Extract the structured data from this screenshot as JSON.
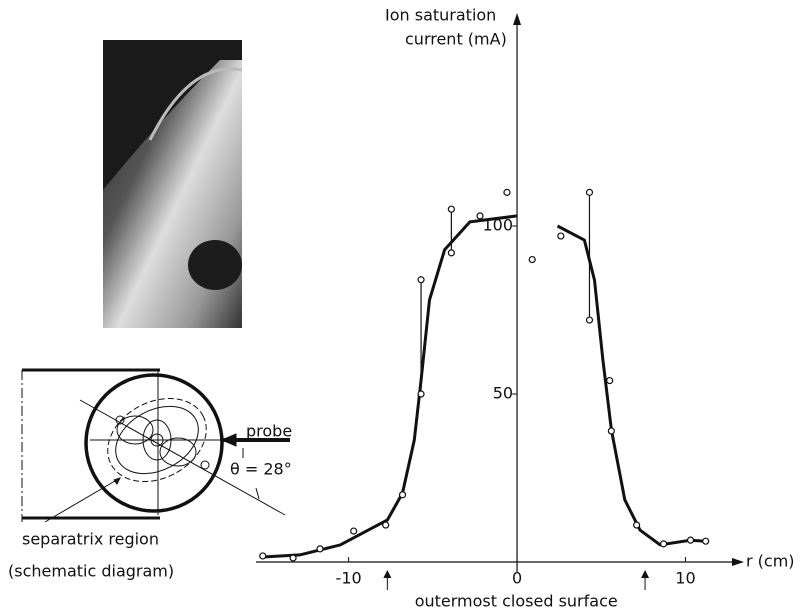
{
  "chart_data": {
    "type": "scatter",
    "ylabel": [
      "Ion saturation",
      "current (mA)"
    ],
    "xlabel": "r (cm)",
    "xlim": [
      -15.5,
      13.0
    ],
    "xticks": [
      -10,
      0,
      10
    ],
    "ylim": [
      0,
      161
    ],
    "yticks": [
      50,
      100
    ],
    "color": "#111111",
    "points": {
      "x": [
        -15.1,
        -13.3,
        -11.7,
        -9.7,
        -7.8,
        -6.8,
        -5.7,
        -5.7,
        -3.9,
        -3.9,
        -2.2,
        -0.6,
        0.9,
        2.6,
        4.3,
        4.3,
        5.5,
        5.6,
        7.1,
        8.7,
        10.3,
        11.2
      ],
      "y": [
        1.8,
        1.2,
        3.9,
        9.2,
        11,
        20,
        50,
        84,
        105,
        92,
        103,
        110,
        90,
        97,
        110,
        72,
        54,
        39,
        11,
        5.4,
        6.5,
        6.2
      ]
    },
    "error_bars": {
      "x": [
        -5.7,
        -3.9,
        4.3
      ],
      "low": [
        50,
        92,
        72
      ],
      "high": [
        84,
        105,
        110
      ]
    },
    "curve": {
      "x": [
        -15.1,
        -12.9,
        -10.5,
        -7.7,
        -6.8,
        -6.1,
        -5.7,
        -5.2,
        -4.3,
        -2.8,
        0,
        null,
        2.4,
        4.0,
        4.6,
        5.1,
        5.6,
        6.4,
        7.3,
        8.5,
        10.3,
        11.2
      ],
      "y": [
        1.5,
        2.1,
        5.1,
        12.5,
        20.5,
        36.3,
        54.2,
        78,
        92.9,
        101.2,
        103,
        null,
        100,
        95.8,
        83.9,
        60.1,
        39.3,
        18.5,
        9.5,
        5.1,
        6.5,
        6.2
      ]
    },
    "annotation": "outermost closed surface",
    "annotation_x": [
      -7.7,
      7.6
    ]
  },
  "inset": {
    "probe": "probe",
    "angle": "θ = 28°",
    "region": "separatrix region",
    "caption": "(schematic diagram)"
  }
}
